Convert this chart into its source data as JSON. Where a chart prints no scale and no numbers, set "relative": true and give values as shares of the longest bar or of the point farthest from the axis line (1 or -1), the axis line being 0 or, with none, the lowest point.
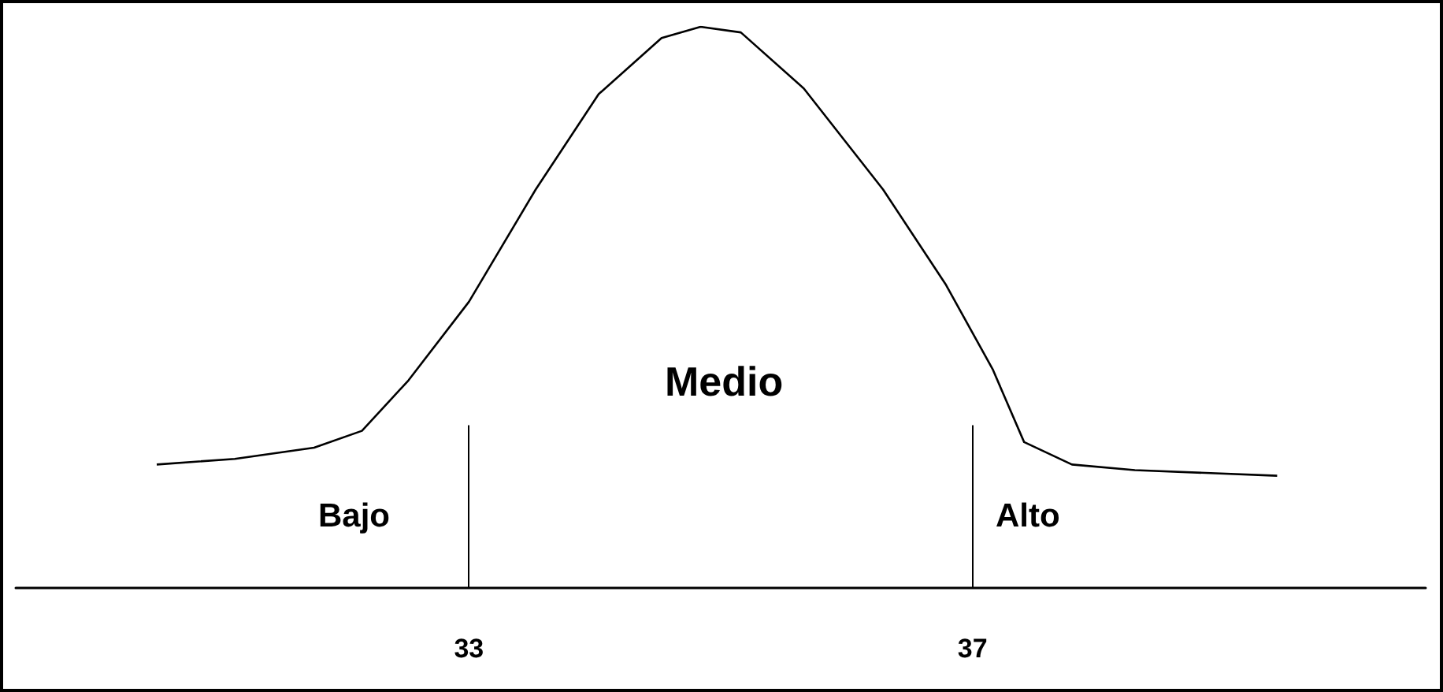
{
  "chart_data": {
    "type": "line",
    "relative": true,
    "color": "#000000",
    "marker": "none",
    "grid": false,
    "tick_labels": "x",
    "x": [
      30.52,
      31.14,
      31.77,
      32.15,
      32.52,
      33.0,
      33.53,
      34.03,
      34.53,
      34.84,
      35.16,
      35.66,
      36.29,
      36.79,
      37.16,
      37.41,
      37.79,
      38.29,
      39.42
    ],
    "values": [
      0.22,
      0.23,
      0.25,
      0.28,
      0.37,
      0.51,
      0.71,
      0.88,
      0.98,
      1,
      0.99,
      0.89,
      0.71,
      0.54,
      0.39,
      0.26,
      0.22,
      0.21,
      0.2
    ],
    "xlim": [
      29.4,
      40.6
    ],
    "xticks": [
      33,
      37
    ],
    "ref_lines": [
      {
        "axis": "x",
        "value": 33
      },
      {
        "axis": "x",
        "value": 37
      }
    ],
    "annotations": [
      "Bajo",
      "Medio",
      "Alto"
    ]
  }
}
